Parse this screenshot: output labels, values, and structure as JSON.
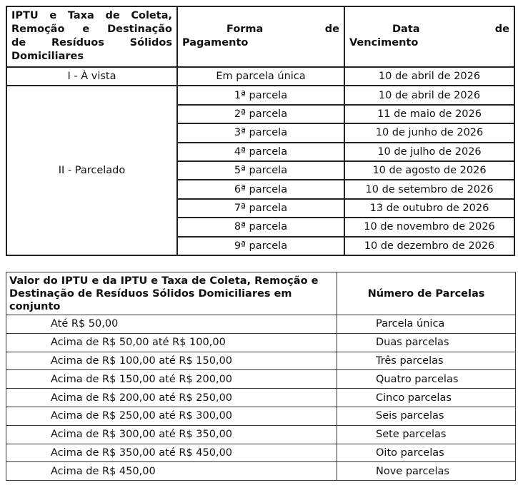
{
  "table1": {
    "headers": [
      "IPTU e Taxa de Coleta, Remoção e Destinação de Resíduos Sólidos Domiciliares",
      "Forma de Pagamento",
      "Data de Vencimento"
    ],
    "header_lines": {
      "col1": [
        "IPTU e Taxa de Coleta,",
        "Remoção e Destinação",
        "de Resíduos Sólidos",
        "Domiciliares"
      ],
      "col2": [
        "Forma de",
        "Pagamento"
      ],
      "col3": [
        "Data de",
        "Vencimento"
      ]
    },
    "a_vista": {
      "label": "I - À vista",
      "forma": "Em parcela única",
      "data": "10 de abril de 2026"
    },
    "parcelado": {
      "label": "II - Parcelado",
      "rows": [
        {
          "forma": "1ª parcela",
          "data": "10 de abril de 2026"
        },
        {
          "forma": "2ª parcela",
          "data": "11 de maio de 2026"
        },
        {
          "forma": "3ª parcela",
          "data": "10 de junho de 2026"
        },
        {
          "forma": "4ª parcela",
          "data": "10 de julho de 2026"
        },
        {
          "forma": "5ª parcela",
          "data": "10 de agosto de 2026"
        },
        {
          "forma": "6ª parcela",
          "data": "10 de setembro de 2026"
        },
        {
          "forma": "7ª parcela",
          "data": "13 de outubro de 2026"
        },
        {
          "forma": "8ª parcela",
          "data": "10 de novembro de 2026"
        },
        {
          "forma": "9ª parcela",
          "data": "10 de dezembro de 2026"
        }
      ]
    }
  },
  "table2": {
    "headers": [
      "Valor do IPTU e da IPTU e Taxa de Coleta, Remoção e Destinação de Resíduos Sólidos Domiciliares em conjunto",
      "Número de Parcelas"
    ],
    "rows": [
      {
        "valor": "Até R$ 50,00",
        "parcelas": "Parcela única"
      },
      {
        "valor": "Acima de R$ 50,00 até R$ 100,00",
        "parcelas": "Duas parcelas"
      },
      {
        "valor": "Acima de R$ 100,00 até R$ 150,00",
        "parcelas": "Três parcelas"
      },
      {
        "valor": "Acima de R$ 150,00 até R$ 200,00",
        "parcelas": "Quatro parcelas"
      },
      {
        "valor": "Acima de R$ 200,00 até R$ 250,00",
        "parcelas": "Cinco parcelas"
      },
      {
        "valor": "Acima de R$ 250,00 até R$ 300,00",
        "parcelas": "Seis parcelas"
      },
      {
        "valor": "Acima de R$ 300,00 até R$ 350,00",
        "parcelas": "Sete parcelas"
      },
      {
        "valor": "Acima de R$ 350,00 até R$ 450,00",
        "parcelas": "Oito parcelas"
      },
      {
        "valor": "Acima de R$ 450,00",
        "parcelas": "Nove parcelas"
      }
    ]
  }
}
